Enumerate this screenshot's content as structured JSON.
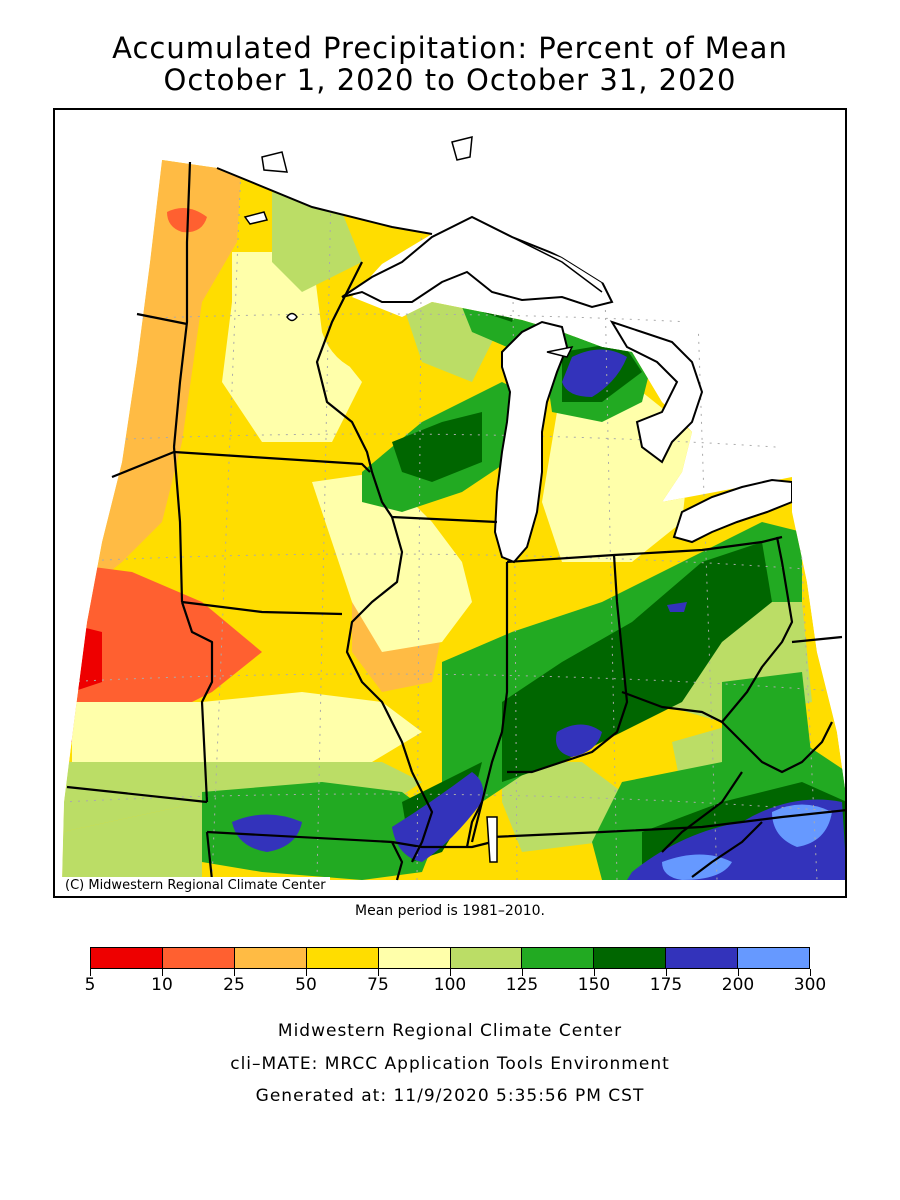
{
  "title": {
    "line1": "Accumulated Precipitation: Percent of Mean",
    "line2": "October 1, 2020 to October 31, 2020"
  },
  "map": {
    "copyright": "(C) Midwestern Regional Climate Center",
    "mean_period": "Mean period is 1981–2010."
  },
  "legend": {
    "breaks": [
      "5",
      "10",
      "25",
      "50",
      "75",
      "100",
      "125",
      "150",
      "175",
      "200",
      "300"
    ],
    "colors": [
      "#ee0000",
      "#ff6030",
      "#ffbb44",
      "#ffdd00",
      "#ffffaa",
      "#bbdd66",
      "#22aa22",
      "#006600",
      "#3333bb",
      "#6699ff"
    ]
  },
  "footer": {
    "line1": "Midwestern Regional Climate Center",
    "line2": "cli–MATE: MRCC Application Tools Environment",
    "line3": "Generated at: 11/9/2020 5:35:56 PM CST"
  },
  "colors": {
    "water": "#ffffff",
    "outline": "#000000",
    "grid": "#aaaaaa"
  }
}
